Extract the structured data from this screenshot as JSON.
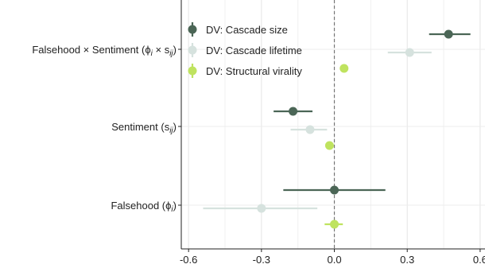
{
  "chart_data": {
    "type": "forest",
    "title": "",
    "xlabel": "",
    "ylabel": "",
    "xlim": [
      -0.63,
      0.62
    ],
    "xticks": [
      -0.6,
      -0.3,
      0.0,
      0.3,
      0.6
    ],
    "xtick_labels": [
      "-0.6",
      "-0.3",
      "0.0",
      "0.3",
      "0.6"
    ],
    "reference_line": 0,
    "grid": true,
    "legend_position": "top-left",
    "categories": [
      {
        "label_main": "Falsehood × Sentiment (ϕ",
        "label_sub1": "i",
        "label_mid": " × s",
        "label_sub2": "ij",
        "label_end": ")"
      },
      {
        "label_main": "Sentiment (s",
        "label_sub1": "ij",
        "label_mid": "",
        "label_sub2": "",
        "label_end": ")"
      },
      {
        "label_main": "Falsehood (ϕ",
        "label_sub1": "i",
        "label_mid": "",
        "label_sub2": "",
        "label_end": ")"
      }
    ],
    "series": [
      {
        "name": "DV: Cascade size",
        "color": "#4b6656",
        "points": [
          {
            "category": 0,
            "estimate": 0.47,
            "low": 0.39,
            "high": 0.56
          },
          {
            "category": 1,
            "estimate": -0.17,
            "low": -0.25,
            "high": -0.09
          },
          {
            "category": 2,
            "estimate": 0.0,
            "low": -0.21,
            "high": 0.21
          }
        ]
      },
      {
        "name": "DV: Cascade lifetime",
        "color": "#d6e2de",
        "points": [
          {
            "category": 0,
            "estimate": 0.31,
            "low": 0.22,
            "high": 0.4
          },
          {
            "category": 1,
            "estimate": -0.1,
            "low": -0.18,
            "high": -0.03
          },
          {
            "category": 2,
            "estimate": -0.3,
            "low": -0.54,
            "high": -0.07
          }
        ]
      },
      {
        "name": "DV: Structural virality",
        "color": "#bfe35f",
        "points": [
          {
            "category": 0,
            "estimate": 0.04,
            "low": 0.03,
            "high": 0.05
          },
          {
            "category": 1,
            "estimate": -0.02,
            "low": -0.03,
            "high": -0.01
          },
          {
            "category": 2,
            "estimate": 0.0,
            "low": -0.04,
            "high": 0.035
          }
        ]
      }
    ]
  }
}
